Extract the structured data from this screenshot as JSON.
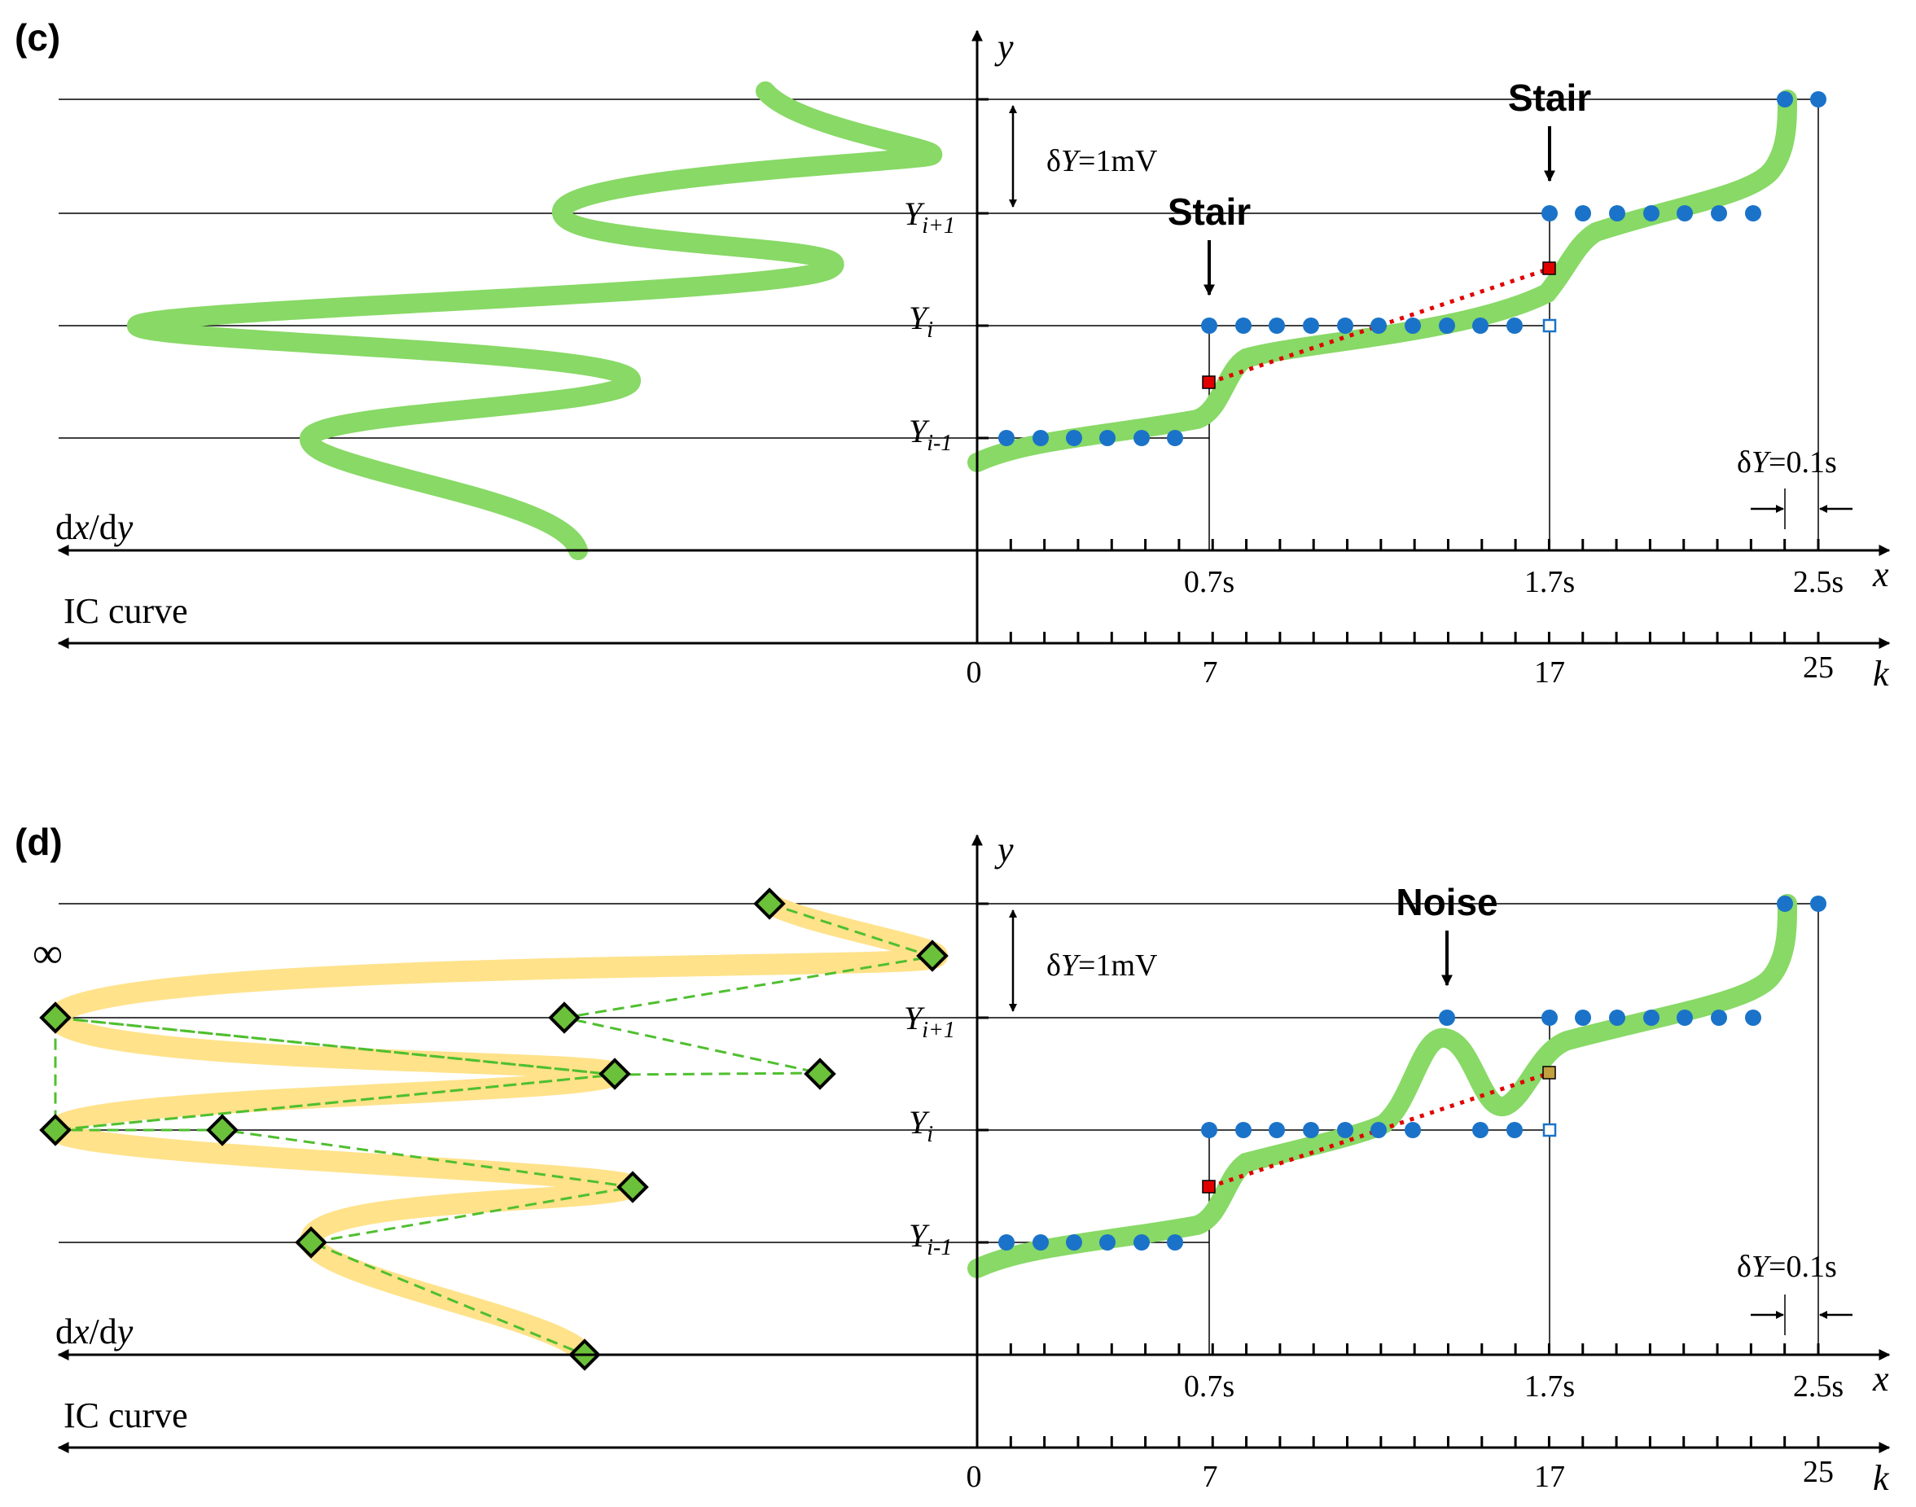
{
  "panels": [
    {
      "id": "c",
      "label": "(c)",
      "axis_labels": {
        "y": "y",
        "x": "x",
        "k": "k",
        "dxdy_d": "d",
        "dxdy_x": "x",
        "dxdy_slash": "/d",
        "dxdy_y": "y",
        "ic": "IC curve"
      },
      "y_levels": [
        {
          "main": "Y",
          "sub": "i+1"
        },
        {
          "main": "Y",
          "sub": "i"
        },
        {
          "main": "Y",
          "sub": "i-1"
        }
      ],
      "delta_y_v": {
        "prefix": "δ",
        "sym": "Y",
        "rest": "=1mV"
      },
      "delta_y_t": {
        "prefix": "δ",
        "sym": "Y",
        "rest": "=0.1s"
      },
      "x_ticks": [
        "0.7s",
        "1.7s",
        "2.5s"
      ],
      "k_ticks": [
        "0",
        "7",
        "17",
        "25"
      ],
      "annotations": [
        "Stair",
        "Stair"
      ],
      "dxdy_markers": "none"
    },
    {
      "id": "d",
      "label": "(d)",
      "axis_labels": {
        "y": "y",
        "x": "x",
        "k": "k",
        "dxdy_d": "d",
        "dxdy_x": "x",
        "dxdy_slash": "/d",
        "dxdy_y": "y",
        "ic": "IC curve"
      },
      "y_levels": [
        {
          "main": "Y",
          "sub": "i+1"
        },
        {
          "main": "Y",
          "sub": "i"
        },
        {
          "main": "Y",
          "sub": "i-1"
        }
      ],
      "delta_y_v": {
        "prefix": "δ",
        "sym": "Y",
        "rest": "=1mV"
      },
      "delta_y_t": {
        "prefix": "δ",
        "sym": "Y",
        "rest": "=0.1s"
      },
      "x_ticks": [
        "0.7s",
        "1.7s",
        "2.5s"
      ],
      "k_ticks": [
        "0",
        "7",
        "17",
        "25"
      ],
      "annotations": [
        "Noise"
      ],
      "infinity": "∞",
      "dxdy_markers": "diamonds"
    }
  ],
  "colors": {
    "curve": "#7ed957",
    "band": "#ffe28a",
    "dot": "#1a73c8",
    "red": "#e00000",
    "diamond": "#6cc13a",
    "axis": "#000000"
  }
}
